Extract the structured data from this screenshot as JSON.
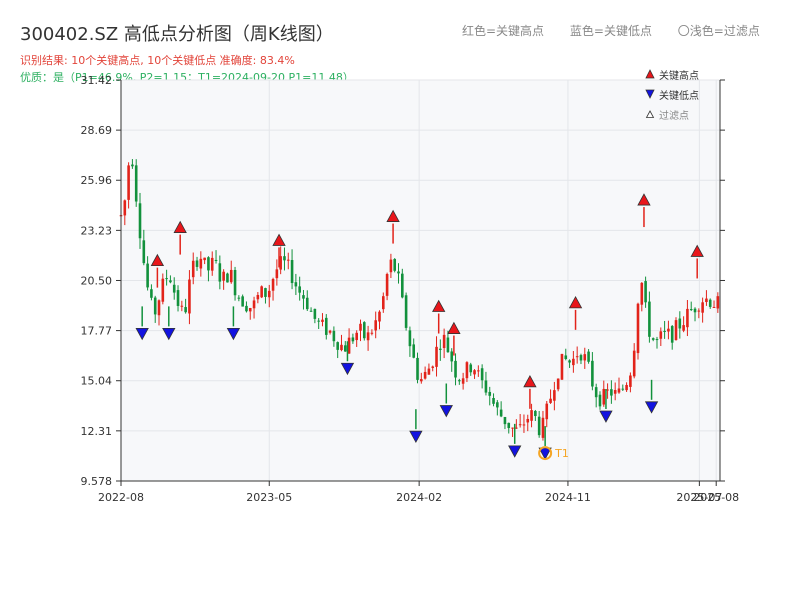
{
  "header": {
    "title": "300402.SZ 高低点分析图（周K线图）",
    "result_line": "识别结果: 10个关键高点, 10个关键低点   准确度: 83.4%",
    "quality_line": "优质：是（P1=46.9%, P2=1.15；T1=2024-09-20 P1=11.48）"
  },
  "top_legend": {
    "red": "红色=关键高点",
    "blue": "蓝色=关键低点",
    "grey": "〇浅色=过滤点"
  },
  "legend": {
    "high": "关键高点",
    "low": "关键低点",
    "filtered": "过滤点"
  },
  "colors": {
    "up": "#e2231a",
    "down": "#12913c",
    "high_marker": "#e8161b",
    "low_marker": "#1213e0",
    "t1": "#f5a524",
    "plot_bg": "#f7f8fa",
    "grid": "#e4e6ea"
  },
  "chart_data": {
    "type": "candlestick",
    "title": "300402.SZ 高低点分析图（周K线图）",
    "x_ticks": [
      "2022-08",
      "2023-05",
      "2024-02",
      "2024-11",
      "2025-07",
      "2025-08"
    ],
    "y_ticks": [
      "9.578",
      "12.31",
      "15.04",
      "17.77",
      "20.50",
      "23.23",
      "25.96",
      "28.69",
      "31.42"
    ],
    "ylim": [
      9.578,
      31.42
    ],
    "x_range": [
      "2022-08-01",
      "2025-08-08"
    ],
    "grid": true,
    "anchors": [
      [
        "2022-08-05",
        24.0
      ],
      [
        "2022-08-19",
        28.0
      ],
      [
        "2022-09-02",
        24.0
      ],
      [
        "2022-09-16",
        20.5
      ],
      [
        "2022-09-30",
        18.5
      ],
      [
        "2022-10-14",
        20.0
      ],
      [
        "2022-10-28",
        21.0
      ],
      [
        "2022-11-11",
        19.5
      ],
      [
        "2022-11-25",
        18.5
      ],
      [
        "2022-12-09",
        21.0
      ],
      [
        "2022-12-23",
        22.0
      ],
      [
        "2023-01-06",
        21.0
      ],
      [
        "2023-01-20",
        21.5
      ],
      [
        "2023-02-03",
        20.5
      ],
      [
        "2023-02-17",
        21.0
      ],
      [
        "2023-03-03",
        19.8
      ],
      [
        "2023-03-17",
        19.3
      ],
      [
        "2023-03-31",
        19.0
      ],
      [
        "2023-04-14",
        19.8
      ],
      [
        "2023-04-28",
        19.8
      ],
      [
        "2023-05-12",
        21.0
      ],
      [
        "2023-05-26",
        21.5
      ],
      [
        "2023-06-09",
        21.0
      ],
      [
        "2023-06-23",
        20.0
      ],
      [
        "2023-07-07",
        19.5
      ],
      [
        "2023-07-21",
        18.5
      ],
      [
        "2023-08-04",
        18.0
      ],
      [
        "2023-08-18",
        17.8
      ],
      [
        "2023-09-01",
        17.3
      ],
      [
        "2023-09-15",
        16.8
      ],
      [
        "2023-09-29",
        17.3
      ],
      [
        "2023-10-13",
        17.8
      ],
      [
        "2023-10-27",
        17.3
      ],
      [
        "2023-11-10",
        18.0
      ],
      [
        "2023-11-24",
        19.0
      ],
      [
        "2023-12-08",
        21.5
      ],
      [
        "2023-12-22",
        21.0
      ],
      [
        "2024-01-05",
        18.5
      ],
      [
        "2024-01-19",
        16.5
      ],
      [
        "2024-02-02",
        15.0
      ],
      [
        "2024-02-16",
        15.5
      ],
      [
        "2024-03-01",
        16.5
      ],
      [
        "2024-03-15",
        17.5
      ],
      [
        "2024-03-29",
        16.5
      ],
      [
        "2024-04-12",
        15.2
      ],
      [
        "2024-04-26",
        15.5
      ],
      [
        "2024-05-10",
        16.0
      ],
      [
        "2024-05-24",
        15.0
      ],
      [
        "2024-06-07",
        14.5
      ],
      [
        "2024-06-21",
        13.5
      ],
      [
        "2024-07-05",
        13.0
      ],
      [
        "2024-07-19",
        12.5
      ],
      [
        "2024-08-02",
        12.2
      ],
      [
        "2024-08-16",
        13.0
      ],
      [
        "2024-08-30",
        13.2
      ],
      [
        "2024-09-13",
        12.2
      ],
      [
        "2024-09-27",
        13.8
      ],
      [
        "2024-10-11",
        15.5
      ],
      [
        "2024-10-25",
        16.2
      ],
      [
        "2024-11-08",
        16.0
      ],
      [
        "2024-11-22",
        16.8
      ],
      [
        "2024-12-06",
        16.0
      ],
      [
        "2024-12-20",
        14.5
      ],
      [
        "2025-01-03",
        14.0
      ],
      [
        "2025-01-17",
        14.5
      ],
      [
        "2025-01-31",
        14.2
      ],
      [
        "2025-02-14",
        14.8
      ],
      [
        "2025-02-28",
        16.0
      ],
      [
        "2025-03-14",
        21.0
      ],
      [
        "2025-03-28",
        18.0
      ],
      [
        "2025-04-11",
        17.0
      ],
      [
        "2025-04-25",
        17.5
      ],
      [
        "2025-05-09",
        17.5
      ],
      [
        "2025-05-23",
        18.0
      ],
      [
        "2025-06-06",
        18.5
      ],
      [
        "2025-06-20",
        19.0
      ],
      [
        "2025-07-04",
        19.5
      ],
      [
        "2025-07-18",
        19.5
      ],
      [
        "2025-08-01",
        19.2
      ]
    ],
    "key_highs": [
      {
        "date": "2022-10-07",
        "price": 21.2
      },
      {
        "date": "2022-11-18",
        "price": 23.0
      },
      {
        "date": "2023-05-19",
        "price": 22.3
      },
      {
        "date": "2023-12-15",
        "price": 23.6
      },
      {
        "date": "2024-03-08",
        "price": 18.7
      },
      {
        "date": "2024-04-05",
        "price": 17.5
      },
      {
        "date": "2024-08-23",
        "price": 14.6
      },
      {
        "date": "2024-11-15",
        "price": 18.9
      },
      {
        "date": "2025-03-21",
        "price": 24.5
      },
      {
        "date": "2025-06-27",
        "price": 21.7
      }
    ],
    "key_lows": [
      {
        "date": "2022-09-09",
        "price": 18.0
      },
      {
        "date": "2022-10-28",
        "price": 18.0
      },
      {
        "date": "2023-02-24",
        "price": 18.0
      },
      {
        "date": "2023-09-22",
        "price": 16.1
      },
      {
        "date": "2024-01-26",
        "price": 12.4
      },
      {
        "date": "2024-03-22",
        "price": 13.8
      },
      {
        "date": "2024-07-26",
        "price": 11.6
      },
      {
        "date": "2024-09-20",
        "price": 11.48
      },
      {
        "date": "2025-01-10",
        "price": 13.5
      },
      {
        "date": "2025-04-04",
        "price": 14.0
      }
    ],
    "t1": {
      "label": "T1",
      "date": "2024-09-20",
      "price": 11.48
    }
  }
}
